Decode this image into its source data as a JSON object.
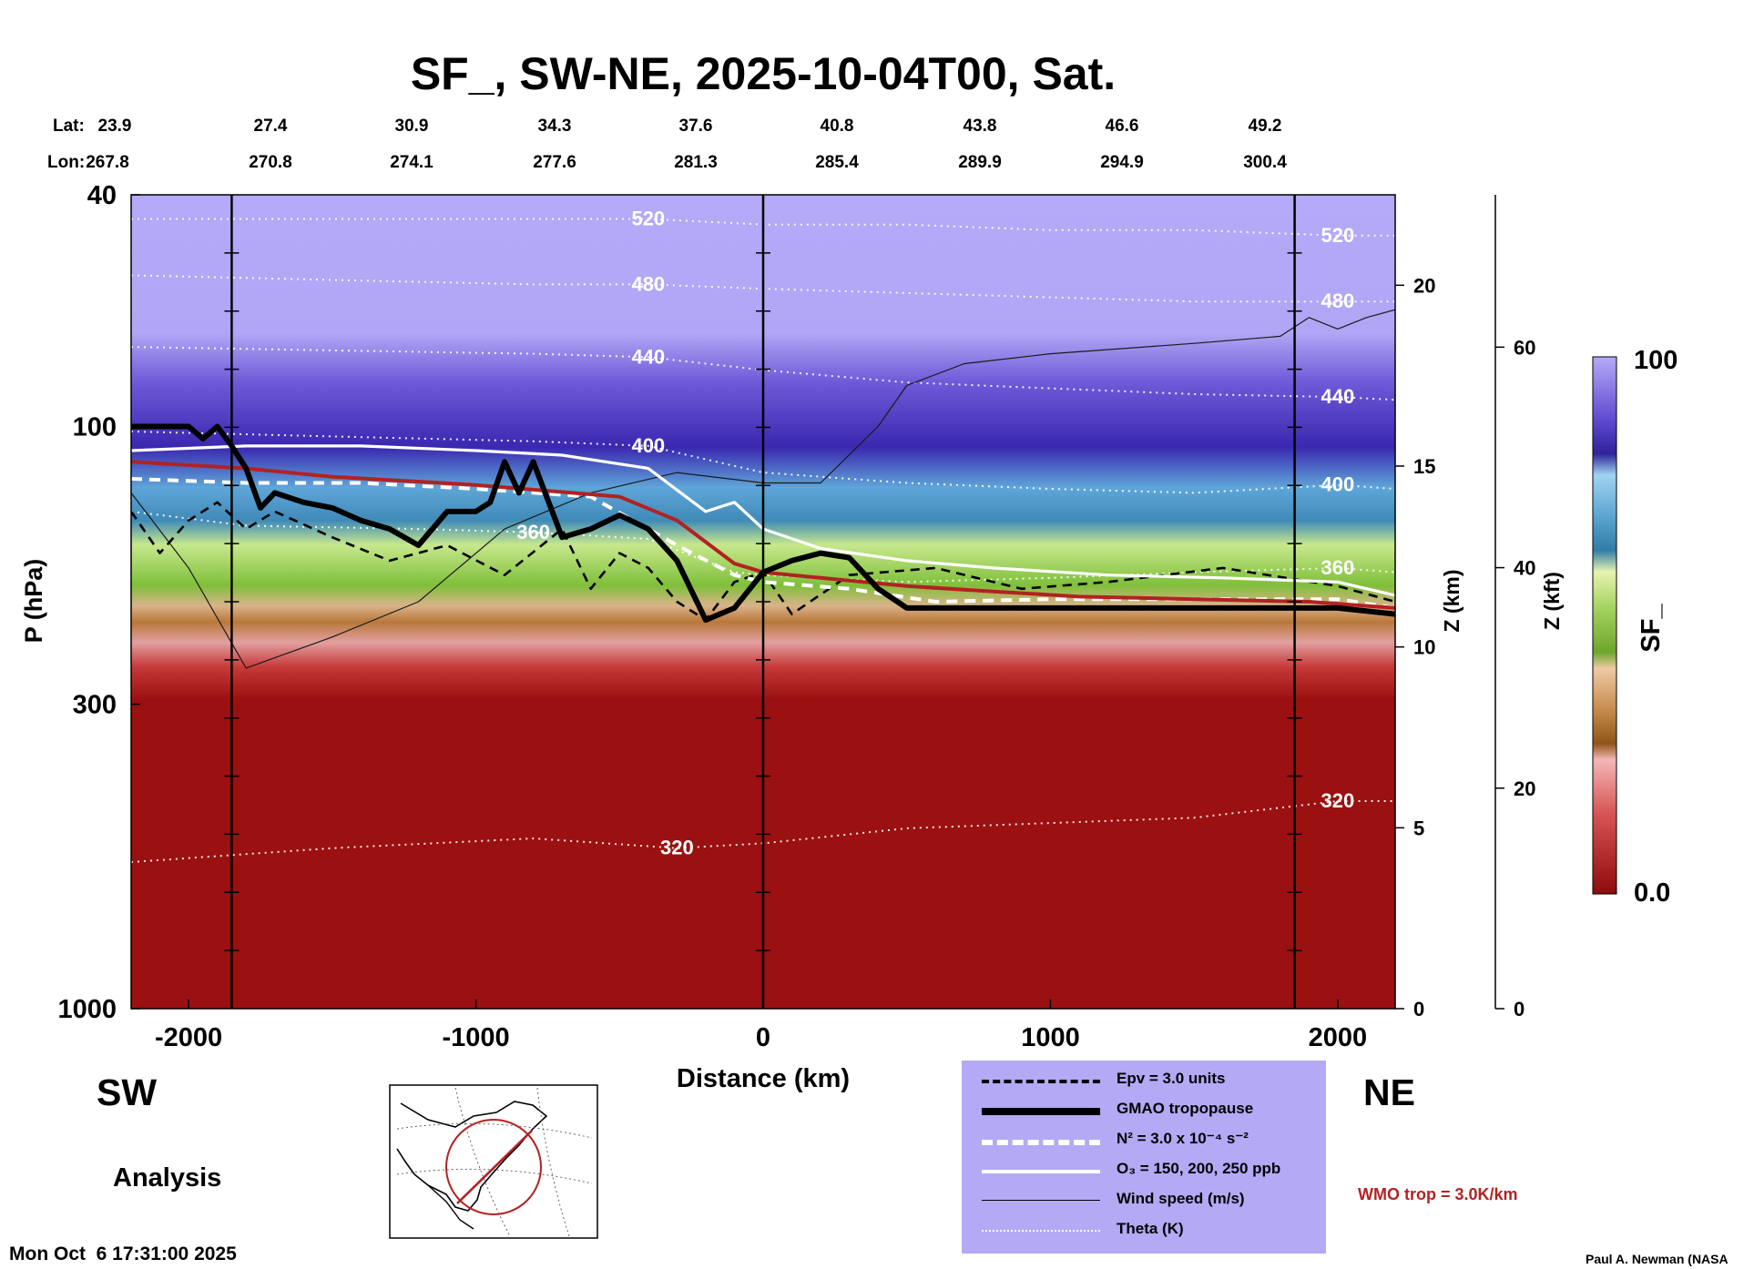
{
  "title": "SF_, SW-NE, 2025-10-04T00, Sat.",
  "lat_label": "Lat:",
  "lon_label": "Lon:",
  "lat_values": [
    "23.9",
    "27.4",
    "30.9",
    "34.3",
    "37.6",
    "40.8",
    "43.8",
    "46.6",
    "49.2"
  ],
  "lon_values": [
    "267.8",
    "270.8",
    "274.1",
    "277.6",
    "281.3",
    "285.4",
    "289.9",
    "294.9",
    "300.4"
  ],
  "left_direction": "SW",
  "right_direction": "NE",
  "analysis_label": "Analysis",
  "timestamp": "Mon Oct  6 17:31:00 2025",
  "credit": "Paul A. Newman (NASA",
  "wmo_note": "WMO trop = 3.0K/km",
  "colorbar": {
    "label": "SF_",
    "max_label": "100",
    "min_label": "0.0"
  },
  "legend": [
    {
      "label": "Epv = 3.0 units",
      "style": "dashed-black"
    },
    {
      "label": "GMAO tropopause",
      "style": "thick-black"
    },
    {
      "label": "N² = 3.0 x 10⁻⁴ s⁻²",
      "style": "dashed-white"
    },
    {
      "label": "O₃ = 150, 200, 250 ppb",
      "style": "white"
    },
    {
      "label": "Wind speed (m/s)",
      "style": "thin-black"
    },
    {
      "label": "Theta (K)",
      "style": "dotted-white"
    }
  ],
  "colors": {
    "legend_bg": "#b3a9f5",
    "wmo_trop": "#b22222",
    "field_low": "#9b1010",
    "field_high": "#b5aaf7"
  },
  "chart_data": {
    "type": "heatmap",
    "title": "SF_, SW-NE, 2025-10-04T00, Sat.",
    "xlabel": "Distance (km)",
    "ylabel": "P (hPa)",
    "ylabel_right": "Z (km)",
    "ylabel_right2": "Z (kft)",
    "xlim": [
      -2200,
      2200
    ],
    "ylim": [
      1000,
      40
    ],
    "y_scale": "log",
    "x_ticks": [
      -2000,
      -1000,
      0,
      1000,
      2000
    ],
    "x_tick_labels": [
      "-2000",
      "-1000",
      "0",
      "1000",
      "2000"
    ],
    "y_ticks": [
      40,
      100,
      300,
      1000
    ],
    "y_tick_labels": [
      "40",
      "100",
      "300",
      "1000"
    ],
    "z_km_ticks": [
      0,
      5,
      10,
      15,
      20
    ],
    "z_km_tick_labels": [
      "0",
      "5",
      "10",
      "15",
      "20"
    ],
    "z_kft_ticks": [
      0,
      20,
      40,
      60
    ],
    "z_kft_tick_labels": [
      "0",
      "20",
      "40",
      "60"
    ],
    "colorbar_range": [
      0.0,
      100
    ],
    "section_markers_km": [
      -1850,
      0,
      1850
    ],
    "theta_contours": [
      {
        "label": "320",
        "x": [
          -2200,
          -1500,
          -800,
          -300,
          0,
          500,
          1000,
          1500,
          2000,
          2200
        ],
        "p": [
          560,
          530,
          510,
          530,
          520,
          490,
          480,
          470,
          440,
          440
        ]
      },
      {
        "label": "360",
        "x": [
          -2200,
          -1800,
          -1200,
          -800,
          -400,
          -100,
          0,
          500,
          1000,
          1500,
          2000,
          2200
        ],
        "p": [
          140,
          148,
          150,
          152,
          156,
          178,
          180,
          185,
          182,
          178,
          175,
          178
        ]
      },
      {
        "label": "400",
        "x": [
          -2200,
          -1500,
          -800,
          -400,
          0,
          500,
          1000,
          1500,
          2000,
          2200
        ],
        "p": [
          102,
          104,
          106,
          108,
          120,
          125,
          128,
          130,
          126,
          128
        ]
      },
      {
        "label": "440",
        "x": [
          -2200,
          -1500,
          -800,
          -400,
          0,
          500,
          1000,
          1500,
          2000,
          2200
        ],
        "p": [
          73,
          74,
          75,
          76,
          80,
          84,
          86,
          88,
          89,
          90
        ]
      },
      {
        "label": "480",
        "x": [
          -2200,
          -1500,
          -800,
          -400,
          0,
          500,
          1000,
          1500,
          2000,
          2200
        ],
        "p": [
          55,
          56,
          57,
          57,
          58,
          59,
          60,
          61,
          61,
          61
        ]
      },
      {
        "label": "520",
        "x": [
          -2200,
          -1500,
          -800,
          -400,
          0,
          500,
          1000,
          1500,
          2000,
          2200
        ],
        "p": [
          44,
          44,
          44,
          44,
          45,
          45,
          46,
          46,
          47,
          47
        ]
      }
    ],
    "series": [
      {
        "name": "GMAO tropopause",
        "x": [
          -2200,
          -2000,
          -1950,
          -1900,
          -1850,
          -1800,
          -1750,
          -1700,
          -1600,
          -1500,
          -1400,
          -1300,
          -1200,
          -1100,
          -1000,
          -950,
          -900,
          -850,
          -800,
          -700,
          -600,
          -500,
          -400,
          -300,
          -200,
          -100,
          0,
          100,
          200,
          300,
          400,
          500,
          1000,
          1500,
          2000,
          2200
        ],
        "p": [
          100,
          100,
          105,
          100,
          108,
          118,
          138,
          130,
          135,
          138,
          145,
          150,
          160,
          140,
          140,
          135,
          115,
          130,
          115,
          155,
          150,
          142,
          150,
          170,
          215,
          205,
          178,
          170,
          165,
          168,
          190,
          205,
          205,
          205,
          205,
          210
        ]
      },
      {
        "name": "WMO trop = 3.0K/km",
        "x": [
          -2200,
          -1800,
          -1500,
          -1000,
          -500,
          -300,
          -100,
          0,
          200,
          500,
          800,
          1100,
          1500,
          1900,
          2200
        ],
        "p": [
          115,
          118,
          122,
          126,
          132,
          145,
          172,
          178,
          182,
          188,
          192,
          196,
          198,
          200,
          205
        ]
      },
      {
        "name": "O₃ = 150, 200, 250 ppb",
        "x": [
          -2200,
          -1800,
          -1400,
          -1000,
          -700,
          -400,
          -200,
          -100,
          0,
          200,
          500,
          800,
          1200,
          1600,
          2000,
          2200
        ],
        "p": [
          110,
          108,
          108,
          110,
          112,
          118,
          140,
          135,
          150,
          162,
          170,
          175,
          180,
          182,
          185,
          195
        ]
      },
      {
        "name": "N² = 3.0 x 10⁻⁴ s⁻²",
        "x": [
          -2200,
          -1800,
          -1400,
          -1000,
          -600,
          -300,
          -100,
          0,
          300,
          600,
          1000,
          1500,
          2000,
          2200
        ],
        "p": [
          123,
          125,
          125,
          128,
          132,
          160,
          180,
          185,
          190,
          200,
          198,
          198,
          198,
          205
        ]
      },
      {
        "name": "Epv = 3.0 units",
        "x": [
          -2200,
          -2100,
          -2000,
          -1900,
          -1800,
          -1700,
          -1500,
          -1300,
          -1100,
          -900,
          -700,
          -600,
          -500,
          -400,
          -300,
          -200,
          -100,
          0,
          100,
          300,
          600,
          900,
          1200,
          1600,
          2000,
          2200
        ],
        "p": [
          140,
          165,
          145,
          135,
          150,
          140,
          155,
          170,
          160,
          180,
          150,
          190,
          165,
          175,
          200,
          215,
          185,
          178,
          210,
          180,
          175,
          190,
          185,
          175,
          188,
          200
        ]
      },
      {
        "name": "Wind speed (m/s)",
        "x": [
          -2200,
          -2000,
          -1800,
          -1500,
          -1200,
          -900,
          -600,
          -300,
          0,
          200,
          400,
          500,
          700,
          1000,
          1500,
          1800,
          1900,
          2000,
          2100,
          2200
        ],
        "p": [
          130,
          175,
          260,
          230,
          200,
          150,
          130,
          120,
          125,
          125,
          100,
          85,
          78,
          75,
          72,
          70,
          65,
          68,
          65,
          63
        ]
      }
    ]
  }
}
